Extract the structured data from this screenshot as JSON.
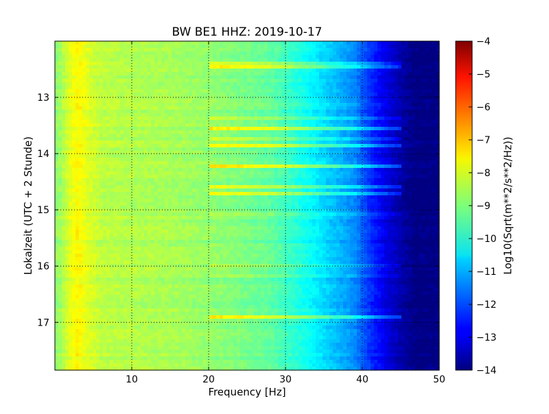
{
  "chart_data": {
    "type": "heatmap",
    "title": "BW BE1 HHZ: 2019-10-17",
    "xlabel": "Frequency [Hz]",
    "ylabel": "Lokalzeit (UTC + 2 Stunde)",
    "xlim": [
      0,
      50
    ],
    "ylim": [
      17.85,
      12.0
    ],
    "x_ticks": [
      {
        "value": 10,
        "label": "10"
      },
      {
        "value": 20,
        "label": "20"
      },
      {
        "value": 30,
        "label": "30"
      },
      {
        "value": 40,
        "label": "40"
      },
      {
        "value": 50,
        "label": "50"
      }
    ],
    "y_ticks": [
      {
        "value": 13,
        "label": "13"
      },
      {
        "value": 14,
        "label": "14"
      },
      {
        "value": 15,
        "label": "15"
      },
      {
        "value": 16,
        "label": "16"
      },
      {
        "value": 17,
        "label": "17"
      }
    ],
    "grid": true,
    "colormap": "jet",
    "colorbar": {
      "label": "Log10(Sqrt(m**2/s**2/Hz))",
      "range": [
        -14,
        -4
      ],
      "ticks": [
        {
          "value": -4,
          "label": "−4"
        },
        {
          "value": -5,
          "label": "−5"
        },
        {
          "value": -6,
          "label": "−6"
        },
        {
          "value": -7,
          "label": "−7"
        },
        {
          "value": -8,
          "label": "−8"
        },
        {
          "value": -9,
          "label": "−9"
        },
        {
          "value": -10,
          "label": "−10"
        },
        {
          "value": -11,
          "label": "−11"
        },
        {
          "value": -12,
          "label": "−12"
        },
        {
          "value": -13,
          "label": "−13"
        },
        {
          "value": -14,
          "label": "−14"
        }
      ]
    },
    "spectrum_profile": [
      {
        "freq": 0.5,
        "level": -8.8
      },
      {
        "freq": 2.0,
        "level": -8.0
      },
      {
        "freq": 3.0,
        "level": -7.7
      },
      {
        "freq": 4.0,
        "level": -8.0
      },
      {
        "freq": 6.0,
        "level": -8.4
      },
      {
        "freq": 10.0,
        "level": -8.5
      },
      {
        "freq": 15.0,
        "level": -8.6
      },
      {
        "freq": 20.0,
        "level": -8.8
      },
      {
        "freq": 25.0,
        "level": -9.1
      },
      {
        "freq": 28.0,
        "level": -9.3
      },
      {
        "freq": 31.0,
        "level": -9.8
      },
      {
        "freq": 33.0,
        "level": -10.2
      },
      {
        "freq": 36.0,
        "level": -10.8
      },
      {
        "freq": 39.0,
        "level": -11.4
      },
      {
        "freq": 41.0,
        "level": -12.3
      },
      {
        "freq": 43.0,
        "level": -13.0
      },
      {
        "freq": 45.0,
        "level": -13.6
      },
      {
        "freq": 47.0,
        "level": -14.0
      },
      {
        "freq": 50.0,
        "level": -14.0
      }
    ],
    "bright_bands_hours": [
      12.12,
      12.38,
      12.45,
      13.1,
      13.35,
      13.55,
      13.72,
      13.85,
      14.22,
      14.6,
      14.72,
      15.1,
      15.6,
      15.97,
      16.15,
      16.9
    ]
  }
}
